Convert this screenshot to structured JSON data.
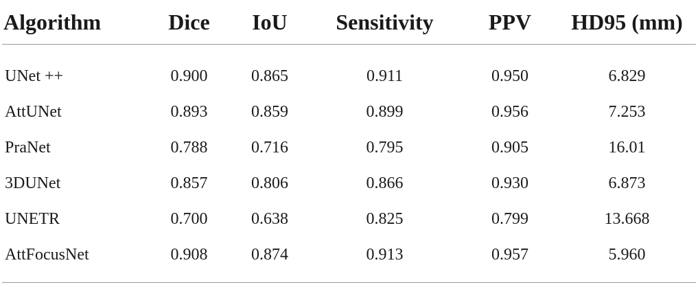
{
  "table": {
    "headers": [
      "Algorithm",
      "Dice",
      "IoU",
      "Sensitivity",
      "PPV",
      "HD95 (mm)"
    ],
    "rows": [
      [
        "UNet ++",
        "0.900",
        "0.865",
        "0.911",
        "0.950",
        "6.829"
      ],
      [
        "AttUNet",
        "0.893",
        "0.859",
        "0.899",
        "0.956",
        "7.253"
      ],
      [
        "PraNet",
        "0.788",
        "0.716",
        "0.795",
        "0.905",
        "16.01"
      ],
      [
        "3DUNet",
        "0.857",
        "0.806",
        "0.866",
        "0.930",
        "6.873"
      ],
      [
        "UNETR",
        "0.700",
        "0.638",
        "0.825",
        "0.799",
        "13.668"
      ],
      [
        "AttFocusNet",
        "0.908",
        "0.874",
        "0.913",
        "0.957",
        "5.960"
      ]
    ]
  }
}
